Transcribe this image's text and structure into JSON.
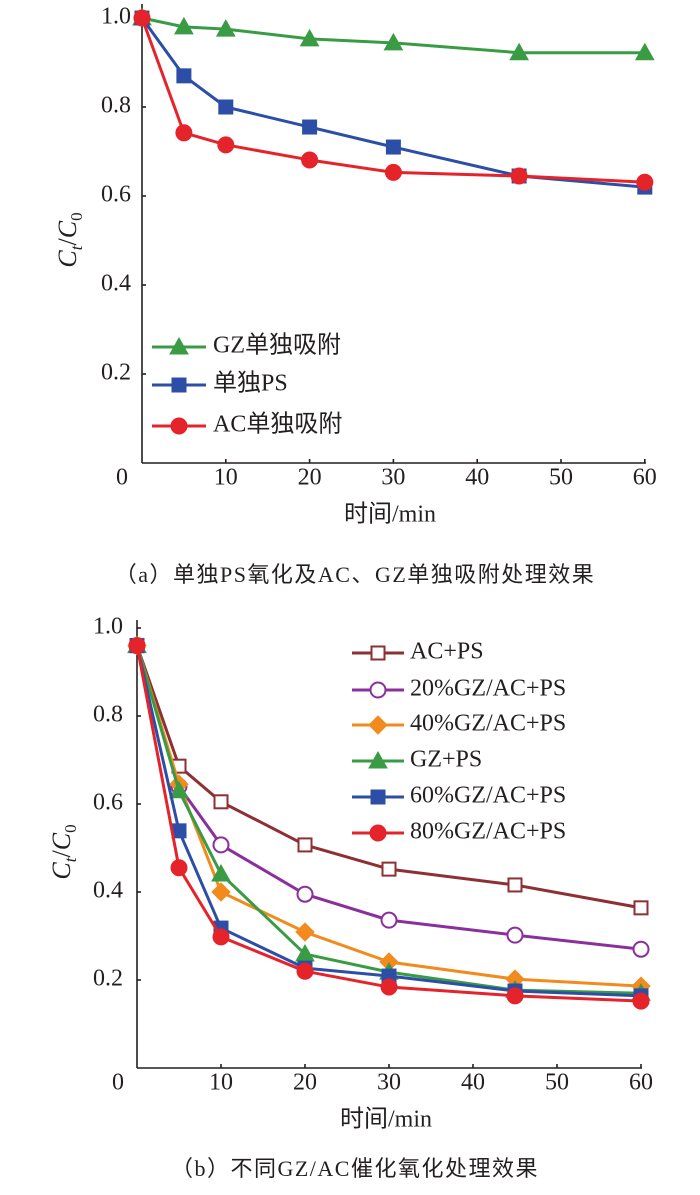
{
  "chart_data": [
    {
      "type": "line",
      "xlabel": "时间/min",
      "ylabel": [
        {
          "text": "C",
          "italic": true
        },
        {
          "text": "t",
          "italic": true,
          "sub": true
        },
        {
          "text": "/"
        },
        {
          "text": "C",
          "italic": true
        },
        {
          "text": "0",
          "sub": true
        }
      ],
      "xlim": [
        0,
        60
      ],
      "ylim": [
        0,
        1.0
      ],
      "xticks": [
        10,
        20,
        30,
        40,
        50,
        60
      ],
      "xticklabels": [
        "10",
        "20",
        "30",
        "40",
        "50",
        "60"
      ],
      "yticks": [
        0.2,
        0.4,
        0.6,
        0.8,
        1.0
      ],
      "yticklabels": [
        "0.2",
        "0.4",
        "0.6",
        "0.8",
        "1.0"
      ],
      "origin_label": "0",
      "grid": false,
      "legend_position": "lower-left",
      "x": [
        0,
        5,
        10,
        20,
        30,
        45,
        60
      ],
      "series": [
        {
          "name": "GZ单独吸附",
          "color": "#3a9b45",
          "marker": "triangle",
          "marker_fill": "filled",
          "values": [
            1.0,
            0.98,
            0.975,
            0.953,
            0.944,
            0.922,
            0.922
          ]
        },
        {
          "name": "单独PS",
          "color": "#2c4ea6",
          "marker": "square",
          "marker_fill": "filled",
          "values": [
            1.0,
            0.87,
            0.8,
            0.755,
            0.71,
            0.645,
            0.62
          ]
        },
        {
          "name": "AC单独吸附",
          "color": "#e5232b",
          "marker": "circle",
          "marker_fill": "filled",
          "values": [
            1.0,
            0.742,
            0.715,
            0.681,
            0.653,
            0.645,
            0.631
          ]
        }
      ],
      "caption": "（a）单独PS氧化及AC、GZ单独吸附处理效果"
    },
    {
      "type": "line",
      "xlabel": "时间/min",
      "ylabel": [
        {
          "text": "C",
          "italic": true
        },
        {
          "text": "t",
          "italic": true,
          "sub": true
        },
        {
          "text": "/"
        },
        {
          "text": "C",
          "italic": true
        },
        {
          "text": "0",
          "sub": true
        }
      ],
      "xlim": [
        0,
        60
      ],
      "ylim": [
        0,
        1.0
      ],
      "xticks": [
        10,
        20,
        30,
        40,
        50,
        60
      ],
      "xticklabels": [
        "10",
        "20",
        "30",
        "40",
        "50",
        "60"
      ],
      "yticks": [
        0.2,
        0.4,
        0.6,
        0.8,
        1.0
      ],
      "yticklabels": [
        "0.2",
        "0.4",
        "0.6",
        "0.8",
        "1.0"
      ],
      "origin_label": "0",
      "grid": false,
      "legend_position": "top-right",
      "x": [
        0,
        5,
        10,
        20,
        30,
        45,
        60
      ],
      "series": [
        {
          "name": "AC+PS",
          "color": "#8e2f33",
          "marker": "square",
          "marker_fill": "open",
          "values": [
            0.96,
            0.686,
            0.605,
            0.507,
            0.452,
            0.416,
            0.364
          ]
        },
        {
          "name": "20%GZ/AC+PS",
          "color": "#8a2f9c",
          "marker": "circle",
          "marker_fill": "open",
          "values": [
            0.96,
            0.64,
            0.507,
            0.395,
            0.336,
            0.302,
            0.27
          ]
        },
        {
          "name": "40%GZ/AC+PS",
          "color": "#f28b1e",
          "marker": "diamond",
          "marker_fill": "filled",
          "values": [
            0.96,
            0.645,
            0.4,
            0.309,
            0.241,
            0.202,
            0.186
          ]
        },
        {
          "name": "GZ+PS",
          "color": "#3a9b45",
          "marker": "triangle",
          "marker_fill": "filled",
          "values": [
            0.96,
            0.63,
            0.441,
            0.259,
            0.218,
            0.177,
            0.17
          ]
        },
        {
          "name": "60%GZ/AC+PS",
          "color": "#2c4ea6",
          "marker": "square",
          "marker_fill": "filled",
          "values": [
            0.96,
            0.539,
            0.318,
            0.227,
            0.209,
            0.175,
            0.164
          ]
        },
        {
          "name": "80%GZ/AC+PS",
          "color": "#e5232b",
          "marker": "circle",
          "marker_fill": "filled",
          "values": [
            0.96,
            0.455,
            0.298,
            0.22,
            0.184,
            0.164,
            0.152
          ]
        }
      ],
      "caption": "（b）不同GZ/AC催化氧化处理效果"
    }
  ]
}
